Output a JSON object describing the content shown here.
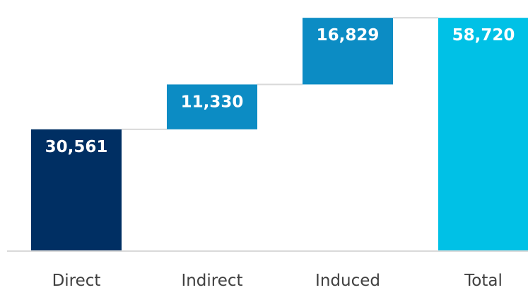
{
  "chart_data": {
    "type": "waterfall",
    "categories": [
      "Direct",
      "Indirect",
      "Induced",
      "Total"
    ],
    "values": [
      30561,
      11330,
      16829,
      58720
    ],
    "labels": [
      "30,561",
      "11,330",
      "16,829",
      "58,720"
    ],
    "total_index": 3,
    "ylim": [
      0,
      60000
    ],
    "grid": false,
    "legend": "none",
    "colors": {
      "Direct": "#002f63",
      "Indirect": "#0c8cc4",
      "Induced": "#0c8cc4",
      "Total": "#00c1e6",
      "connector": "#d9d9d9",
      "baseline": "#d9d9d9"
    }
  }
}
